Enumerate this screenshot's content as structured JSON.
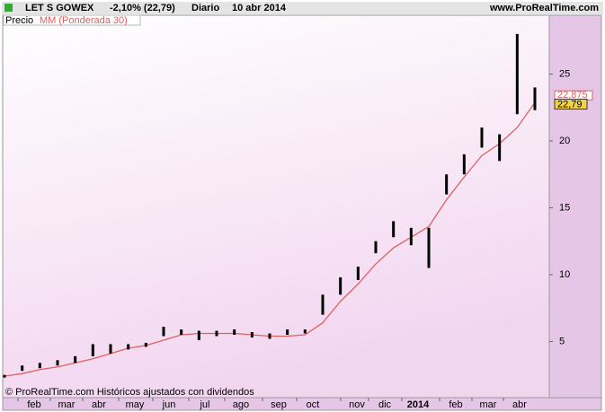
{
  "chart_data": {
    "type": "range_bar",
    "title": "LET S GOWEX",
    "change": "-2,10% (22,79)",
    "period": "Diario",
    "date": "10 abr 2014",
    "site": "www.ProRealTime.com",
    "footer": "© ProRealTime.com  Históricos ajustados con dividendos",
    "months": [
      "feb",
      "mar",
      "abr",
      "may",
      "jun",
      "jul",
      "ago",
      "sep",
      "oct",
      "nov",
      "dic",
      "2014",
      "feb",
      "mar",
      "abr"
    ],
    "series": [
      {
        "name": "Precio",
        "color": "#000000",
        "low": [
          2.3,
          2.8,
          3.0,
          3.2,
          3.4,
          3.9,
          4.1,
          4.4,
          4.6,
          5.4,
          5.5,
          5.1,
          5.4,
          5.5,
          5.3,
          5.2,
          5.5,
          5.6,
          7.0,
          8.5,
          9.6,
          11.6,
          12.8,
          12.2,
          10.5,
          16.0,
          17.5,
          19.5,
          18.5,
          22.0,
          22.3
        ],
        "high": [
          2.5,
          3.2,
          3.4,
          3.6,
          3.9,
          4.8,
          4.8,
          4.8,
          4.9,
          6.1,
          5.9,
          5.8,
          5.8,
          5.9,
          5.7,
          5.6,
          5.9,
          5.9,
          8.5,
          9.8,
          10.6,
          12.5,
          14.0,
          13.5,
          13.5,
          17.5,
          19.0,
          21.0,
          20.5,
          28.0,
          24.0
        ],
        "last": 22.79,
        "last_label": "22,79",
        "label_color": "#f5d442"
      },
      {
        "name": "MM (Ponderada 30)",
        "color": "#e06060",
        "values": [
          2.4,
          2.6,
          2.9,
          3.1,
          3.4,
          3.7,
          4.1,
          4.5,
          4.7,
          5.1,
          5.5,
          5.6,
          5.6,
          5.6,
          5.5,
          5.4,
          5.4,
          5.5,
          6.4,
          8.0,
          9.3,
          10.8,
          12.0,
          12.8,
          13.6,
          15.6,
          17.3,
          18.9,
          19.8,
          21.0,
          22.875
        ],
        "last_label": "22,875"
      }
    ],
    "ylim": [
      0.8,
      29.4
    ],
    "yticks": [
      5,
      10,
      15,
      20,
      25
    ]
  }
}
